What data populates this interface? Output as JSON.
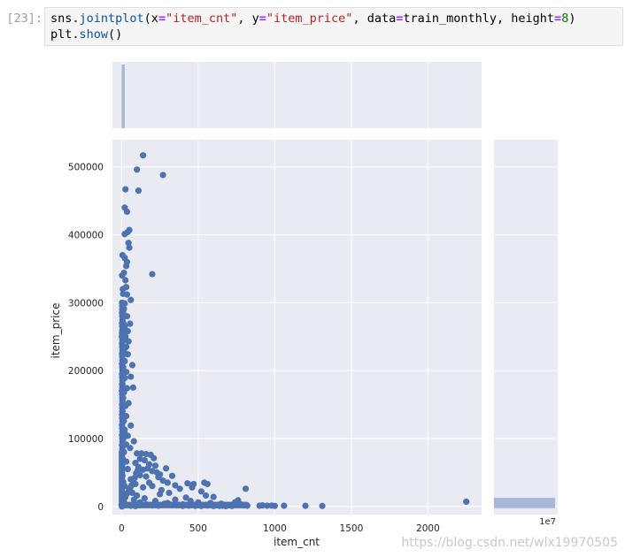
{
  "cell": {
    "prompt": "[23]:",
    "code_line1": {
      "p1": "sns.",
      "fn": "jointplot",
      "p2": "(x",
      "eq1": "=",
      "s1": "\"item_cnt\"",
      "p3": ", y",
      "eq2": "=",
      "s2": "\"item_price\"",
      "p4": ", data",
      "eq3": "=",
      "p5": "train_monthly, height",
      "eq4": "=",
      "n1": "8",
      "p6": ")"
    },
    "code_line2": {
      "p1": "plt.",
      "fn": "show",
      "p2": "()"
    }
  },
  "watermark": "https://blog.csdn.net/wlx19970505",
  "colors": {
    "axes_bg": "#eaeaf2",
    "grid": "#ffffff",
    "point": "#4c72b0",
    "bar": "#a8b7d8"
  },
  "chart_data": {
    "type": "scatter",
    "title": "",
    "xlabel": "item_cnt",
    "ylabel": "item_price",
    "xlim": [
      -60,
      2350
    ],
    "ylim": [
      -12000,
      540000
    ],
    "x_ticks": [
      0,
      500,
      1000,
      1500,
      2000
    ],
    "y_ticks": [
      0,
      100000,
      200000,
      300000,
      400000,
      500000
    ],
    "x_tick_labels": [
      "0",
      "500",
      "1000",
      "1500",
      "2000"
    ],
    "y_tick_labels": [
      "0",
      "100000",
      "200000",
      "300000",
      "400000",
      "500000"
    ],
    "grid": true,
    "points": [
      [
        140,
        517000
      ],
      [
        100,
        496000
      ],
      [
        270,
        488000
      ],
      [
        25,
        467000
      ],
      [
        110,
        465000
      ],
      [
        20,
        440000
      ],
      [
        35,
        434000
      ],
      [
        50,
        407000
      ],
      [
        40,
        404000
      ],
      [
        20,
        401000
      ],
      [
        45,
        388000
      ],
      [
        50,
        381000
      ],
      [
        20,
        366000
      ],
      [
        35,
        360000
      ],
      [
        30,
        354000
      ],
      [
        200,
        342000
      ],
      [
        15,
        344000
      ],
      [
        25,
        333000
      ],
      [
        30,
        323000
      ],
      [
        10,
        313000
      ],
      [
        35,
        312000
      ],
      [
        60,
        304000
      ],
      [
        20,
        299000
      ],
      [
        15,
        291000
      ],
      [
        10,
        285000
      ],
      [
        35,
        280000
      ],
      [
        55,
        269000
      ],
      [
        20,
        265000
      ],
      [
        5,
        259000
      ],
      [
        40,
        258000
      ],
      [
        25,
        250000
      ],
      [
        10,
        244000
      ],
      [
        45,
        243000
      ],
      [
        30,
        235000
      ],
      [
        15,
        230000
      ],
      [
        5,
        225000
      ],
      [
        40,
        224000
      ],
      [
        20,
        214000
      ],
      [
        70,
        208000
      ],
      [
        10,
        205000
      ],
      [
        30,
        198000
      ],
      [
        60,
        191000
      ],
      [
        20,
        189000
      ],
      [
        5,
        180000
      ],
      [
        35,
        174000
      ],
      [
        15,
        168000
      ],
      [
        75,
        175000
      ],
      [
        10,
        160000
      ],
      [
        45,
        152000
      ],
      [
        25,
        148000
      ],
      [
        5,
        140000
      ],
      [
        30,
        133000
      ],
      [
        15,
        126000
      ],
      [
        60,
        119000
      ],
      [
        20,
        113000
      ],
      [
        40,
        104000
      ],
      [
        10,
        99000
      ],
      [
        80,
        96000
      ],
      [
        30,
        91000
      ],
      [
        55,
        86000
      ],
      [
        15,
        80000
      ],
      [
        100,
        78000
      ],
      [
        130,
        78000
      ],
      [
        160,
        77000
      ],
      [
        190,
        76000
      ],
      [
        210,
        71000
      ],
      [
        120,
        70000
      ],
      [
        150,
        68000
      ],
      [
        90,
        64000
      ],
      [
        180,
        62000
      ],
      [
        220,
        60000
      ],
      [
        110,
        58000
      ],
      [
        170,
        56000
      ],
      [
        140,
        54000
      ],
      [
        200,
        52000
      ],
      [
        230,
        50000
      ],
      [
        250,
        47000
      ],
      [
        120,
        46000
      ],
      [
        160,
        44000
      ],
      [
        240,
        43000
      ],
      [
        290,
        56000
      ],
      [
        330,
        45000
      ],
      [
        270,
        38000
      ],
      [
        300,
        35000
      ],
      [
        430,
        34000
      ],
      [
        470,
        33000
      ],
      [
        540,
        35000
      ],
      [
        560,
        33000
      ],
      [
        350,
        31000
      ],
      [
        460,
        28000
      ],
      [
        380,
        26000
      ],
      [
        810,
        26000
      ],
      [
        520,
        22000
      ],
      [
        550,
        16000
      ],
      [
        600,
        14000
      ],
      [
        420,
        13000
      ],
      [
        260,
        24000
      ],
      [
        310,
        20000
      ],
      [
        200,
        30000
      ],
      [
        90,
        33000
      ],
      [
        60,
        40000
      ],
      [
        40,
        55000
      ],
      [
        30,
        66000
      ],
      [
        180,
        35000
      ],
      [
        140,
        28000
      ],
      [
        250,
        18000
      ],
      [
        350,
        10000
      ],
      [
        450,
        8000
      ],
      [
        500,
        6000
      ],
      [
        580,
        5000
      ],
      [
        650,
        4000
      ],
      [
        700,
        2000
      ],
      [
        740,
        6000
      ],
      [
        760,
        9000
      ],
      [
        780,
        3000
      ],
      [
        800,
        1500
      ],
      [
        820,
        1000
      ],
      [
        900,
        1000
      ],
      [
        920,
        1500
      ],
      [
        950,
        1000
      ],
      [
        980,
        1200
      ],
      [
        1000,
        800
      ],
      [
        1060,
        1000
      ],
      [
        1200,
        900
      ],
      [
        1310,
        700
      ],
      [
        2250,
        7000
      ],
      [
        660,
        1000
      ],
      [
        620,
        2000
      ],
      [
        480,
        2000
      ],
      [
        400,
        3000
      ],
      [
        300,
        5000
      ],
      [
        220,
        8000
      ],
      [
        150,
        12000
      ],
      [
        100,
        16000
      ],
      [
        70,
        20000
      ],
      [
        50,
        25000
      ],
      [
        20,
        30000
      ],
      [
        10,
        36000
      ],
      [
        5,
        45000
      ],
      [
        3,
        60000
      ],
      [
        8,
        70000
      ],
      [
        12,
        90000
      ],
      [
        18,
        110000
      ],
      [
        4,
        130000
      ],
      [
        6,
        150000
      ],
      [
        2,
        170000
      ],
      [
        9,
        190000
      ],
      [
        3,
        210000
      ],
      [
        7,
        230000
      ],
      [
        2,
        250000
      ],
      [
        11,
        270000
      ],
      [
        4,
        290000
      ],
      [
        8,
        320000
      ],
      [
        3,
        340000
      ],
      [
        6,
        370000
      ],
      [
        80,
        10000
      ],
      [
        120,
        6000
      ],
      [
        160,
        3000
      ],
      [
        200,
        1500
      ],
      [
        240,
        1000
      ],
      [
        280,
        4000
      ],
      [
        320,
        2500
      ],
      [
        360,
        1500
      ],
      [
        400,
        800
      ],
      [
        440,
        1200
      ],
      [
        480,
        900
      ],
      [
        520,
        700
      ],
      [
        560,
        1300
      ],
      [
        600,
        600
      ],
      [
        640,
        900
      ],
      [
        680,
        500
      ],
      [
        720,
        700
      ],
      [
        30,
        2000
      ],
      [
        60,
        1000
      ],
      [
        90,
        500
      ],
      [
        15,
        9000
      ],
      [
        25,
        14000
      ],
      [
        35,
        19000
      ],
      [
        45,
        22000
      ],
      [
        55,
        27000
      ],
      [
        65,
        31000
      ],
      [
        75,
        38000
      ],
      [
        85,
        42000
      ],
      [
        95,
        49000
      ],
      [
        105,
        53000
      ]
    ],
    "x_marginal": {
      "type": "histogram",
      "bars": [
        {
          "x_start": 0,
          "x_end": 20,
          "relative_height": 1.0
        }
      ]
    },
    "y_marginal": {
      "type": "histogram",
      "bars": [
        {
          "y_start": 0,
          "y_end": 10000,
          "relative_width": 1.0
        }
      ],
      "x_offset_label": "1e7"
    }
  }
}
